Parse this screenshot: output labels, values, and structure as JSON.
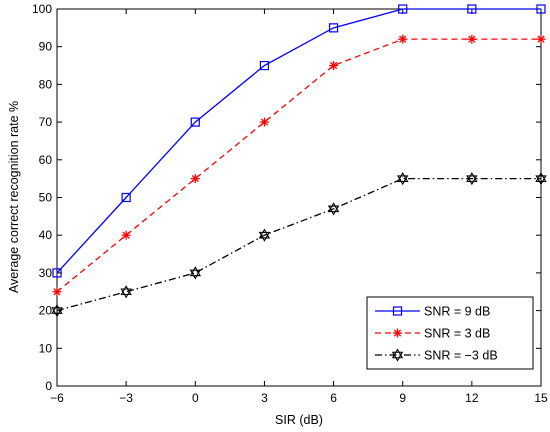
{
  "chart_data": {
    "type": "line",
    "xlabel": "SIR (dB)",
    "ylabel": "Average correct recognition rate %",
    "x": [
      -6,
      -3,
      0,
      3,
      6,
      9,
      12,
      15
    ],
    "x_tick_labels": [
      "−6",
      "−3",
      "0",
      "3",
      "6",
      "9",
      "12",
      "15"
    ],
    "xlim": [
      -6,
      15
    ],
    "ylim": [
      0,
      100
    ],
    "y_ticks": [
      0,
      10,
      20,
      30,
      40,
      50,
      60,
      70,
      80,
      90,
      100
    ],
    "grid": false,
    "legend_position": "bottom-right",
    "series": [
      {
        "name": "SNR = 9 dB",
        "values": [
          30,
          50,
          70,
          85,
          95,
          100,
          100,
          100
        ],
        "color": "#0000ff",
        "line_style": "solid",
        "marker": "square"
      },
      {
        "name": "SNR = 3 dB",
        "values": [
          25,
          40,
          55,
          70,
          85,
          92,
          92,
          92
        ],
        "color": "#ff0000",
        "line_style": "dashed",
        "marker": "asterisk"
      },
      {
        "name": "SNR = −3 dB",
        "values": [
          20,
          25,
          30,
          40,
          47,
          55,
          55,
          55
        ],
        "color": "#000000",
        "line_style": "dashdot",
        "marker": "hexagram"
      }
    ]
  }
}
